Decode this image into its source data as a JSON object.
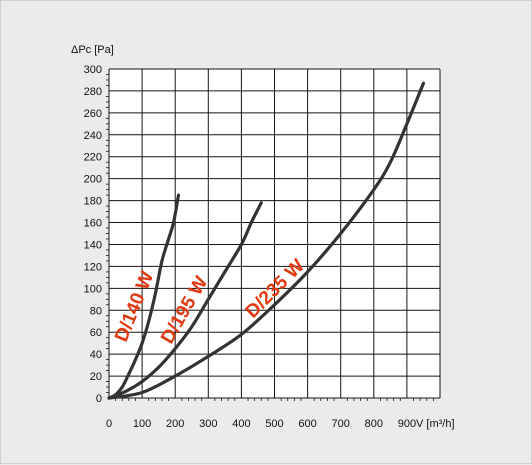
{
  "chart_data": {
    "type": "line",
    "title": "",
    "xlabel": "V [m³/h]",
    "ylabel": "ΔPc [Pa]",
    "xlim": [
      0,
      1000
    ],
    "ylim": [
      0,
      300
    ],
    "x_ticks": [
      0,
      100,
      200,
      300,
      400,
      500,
      600,
      700,
      800,
      900
    ],
    "y_ticks": [
      0,
      20,
      40,
      60,
      80,
      100,
      120,
      140,
      160,
      180,
      200,
      220,
      240,
      260,
      280,
      300
    ],
    "grid": true,
    "colors": {
      "curve": "#333333",
      "label": "#e03a12",
      "background": "#ebebeb",
      "plot": "#ffffff"
    },
    "series": [
      {
        "name": "D/140 W",
        "x": [
          0,
          20,
          40,
          60,
          80,
          100,
          120,
          140,
          160,
          180,
          195,
          210
        ],
        "y": [
          0,
          3,
          10,
          22,
          35,
          50,
          70,
          95,
          125,
          145,
          160,
          185
        ]
      },
      {
        "name": "D/195 W",
        "x": [
          0,
          50,
          100,
          150,
          200,
          250,
          300,
          350,
          400,
          430,
          460
        ],
        "y": [
          0,
          6,
          15,
          28,
          45,
          65,
          90,
          115,
          140,
          160,
          178
        ]
      },
      {
        "name": "D/235 W",
        "x": [
          0,
          100,
          200,
          300,
          400,
          500,
          600,
          700,
          800,
          850,
          900,
          950
        ],
        "y": [
          0,
          5,
          20,
          38,
          58,
          85,
          115,
          150,
          190,
          215,
          250,
          287
        ]
      }
    ]
  }
}
